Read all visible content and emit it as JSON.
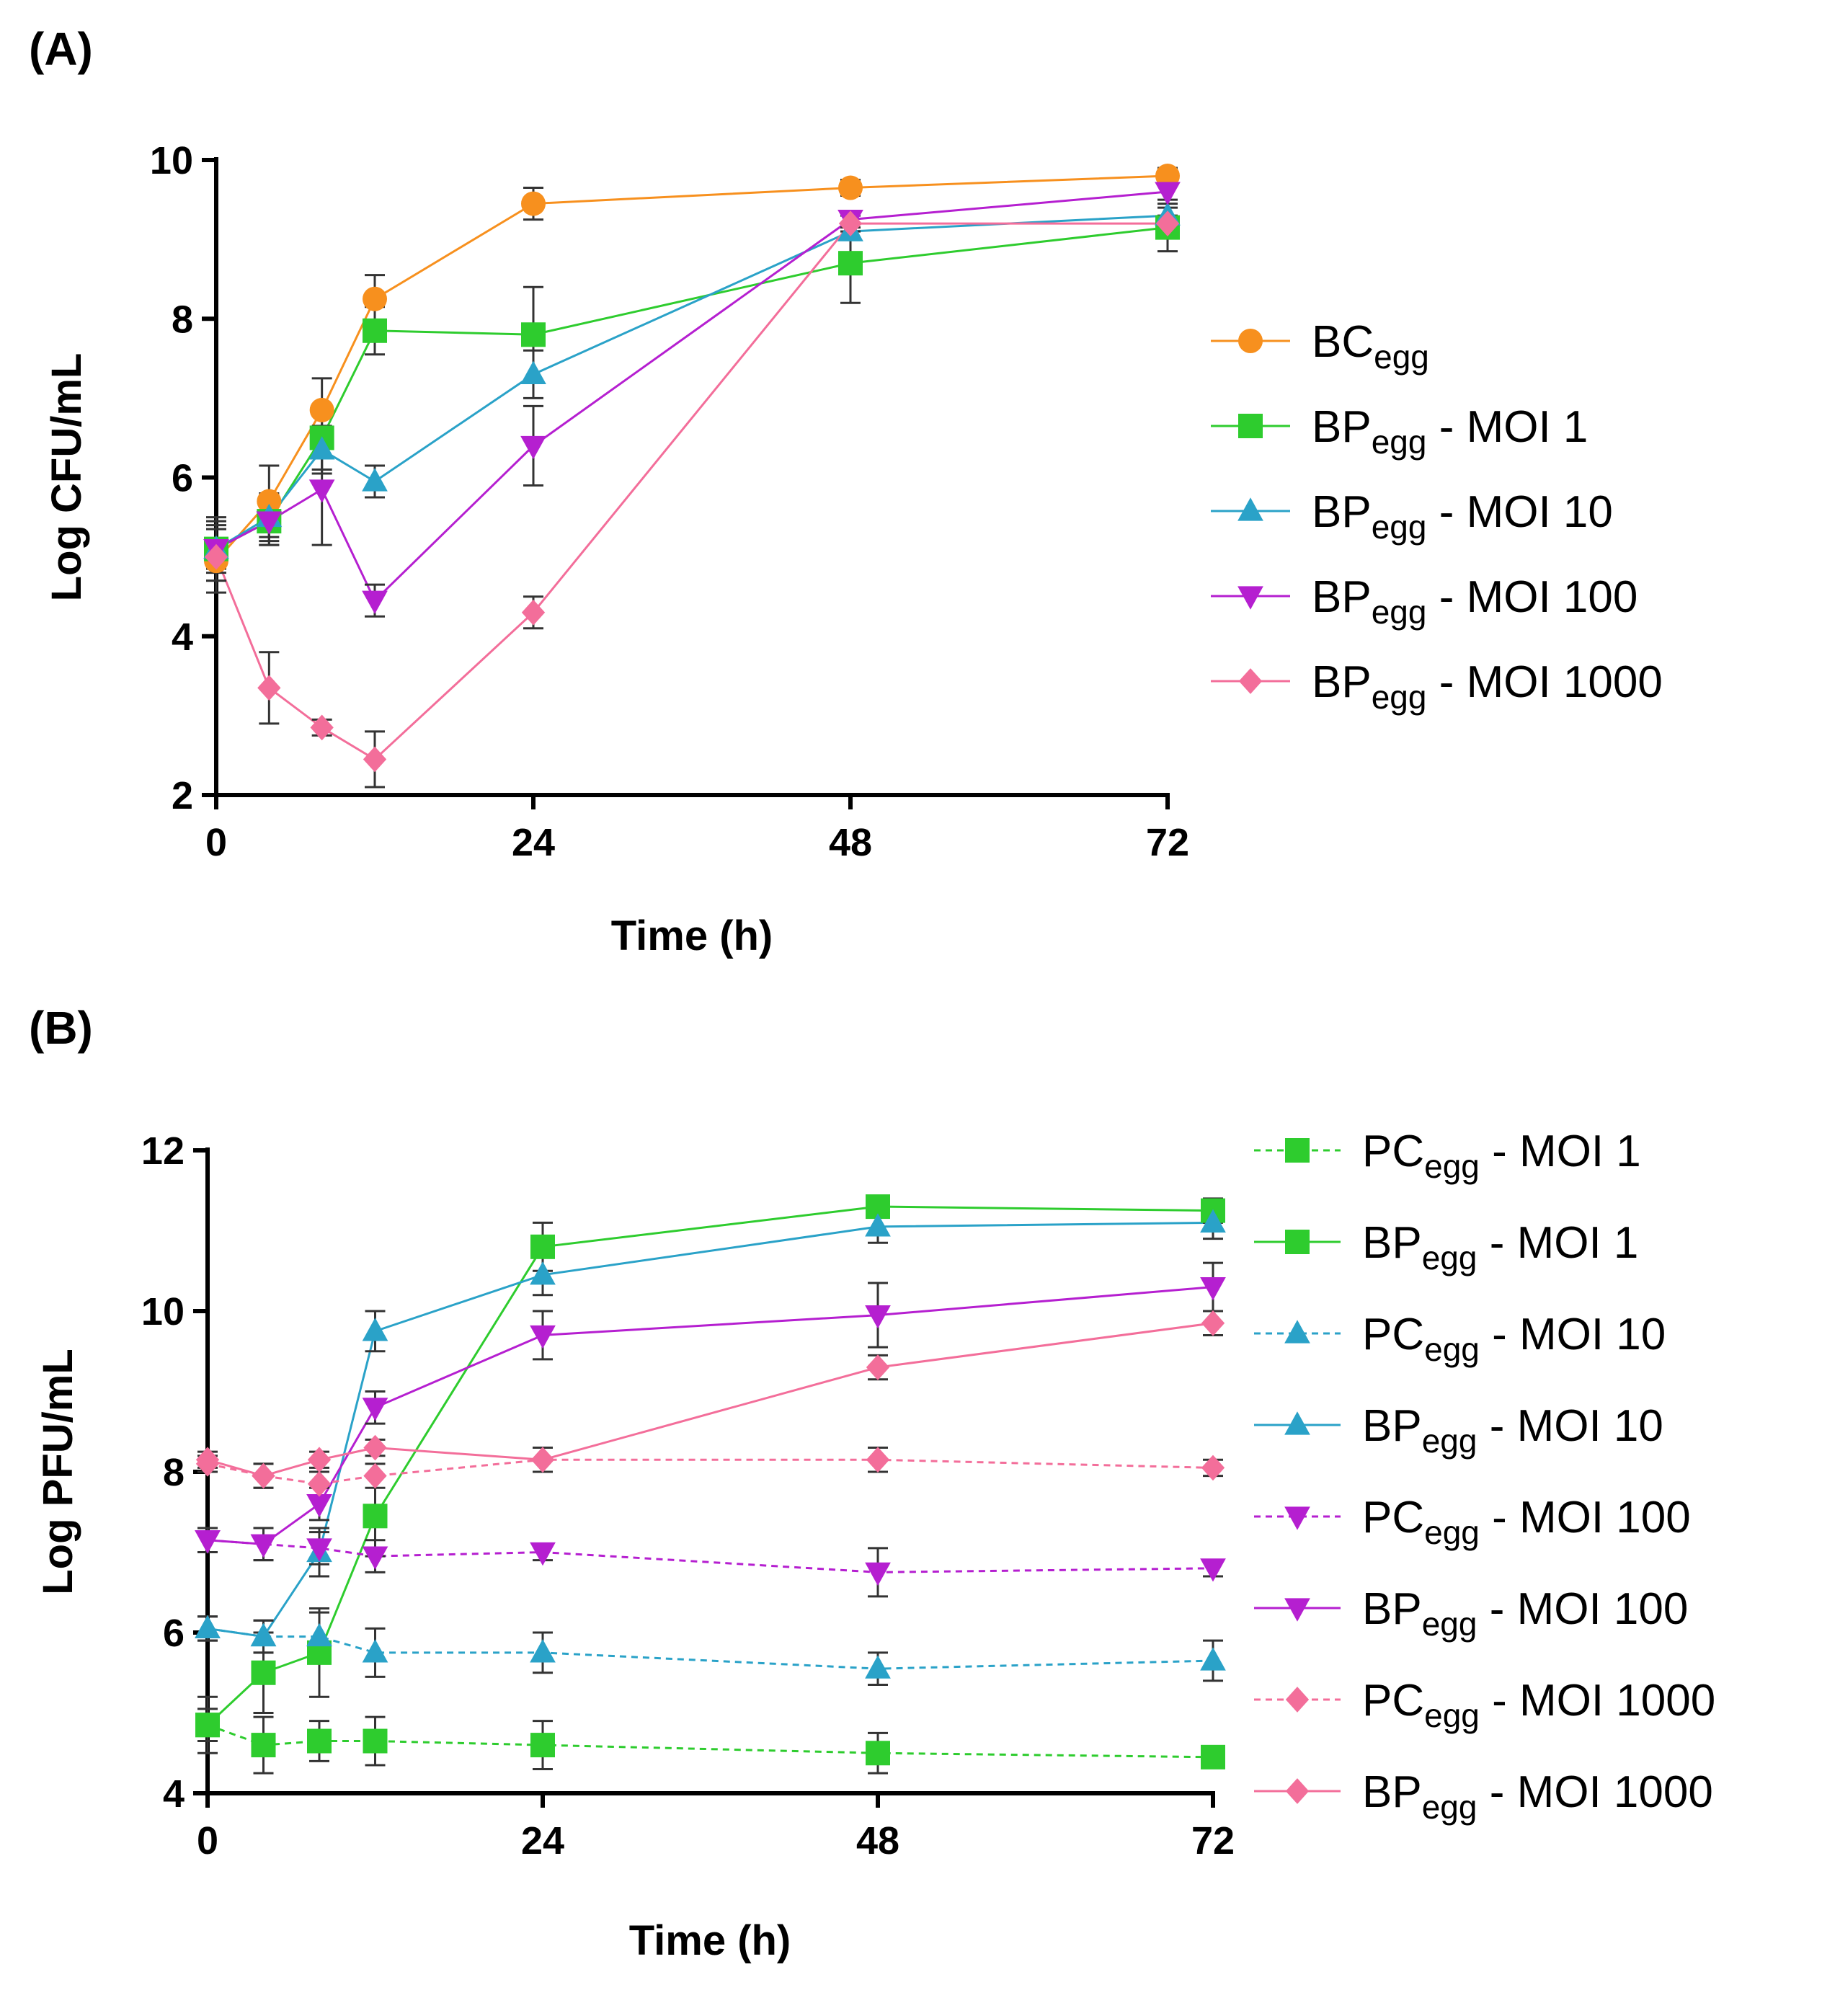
{
  "colors": {
    "orange": "#F7901E",
    "green": "#2ECC2E",
    "teal": "#2AA2C8",
    "purple": "#B51FD0",
    "pink": "#F36E9A",
    "axis": "#000000",
    "errorbar": "#333333"
  },
  "chart_data": [
    {
      "panel_label": "(A)",
      "type": "line",
      "title": "",
      "xlabel": "Time (h)",
      "ylabel": "Log CFU/mL",
      "xlim": [
        0,
        72
      ],
      "ylim": [
        2,
        10
      ],
      "xticks": [
        "0",
        "24",
        "48",
        "72"
      ],
      "yticks": [
        "2",
        "4",
        "6",
        "8",
        "10"
      ],
      "grid": false,
      "legend_position": "right",
      "x": [
        0,
        4,
        8,
        12,
        24,
        48,
        72
      ],
      "series": [
        {
          "base": "BC",
          "sub": "egg",
          "suffix": "",
          "color": "orange",
          "marker": "circle",
          "dash": false,
          "values": [
            4.95,
            5.7,
            6.85,
            8.25,
            9.45,
            9.65,
            9.8
          ],
          "errors": [
            0.25,
            0.45,
            0.4,
            0.3,
            0.2,
            0.1,
            0.1
          ]
        },
        {
          "base": "BP",
          "sub": "egg",
          "suffix": " - MOI 1",
          "color": "green",
          "marker": "square",
          "dash": false,
          "values": [
            5.1,
            5.45,
            6.5,
            7.85,
            7.8,
            8.7,
            9.15
          ],
          "errors": [
            0.3,
            0.3,
            0.4,
            0.3,
            0.6,
            0.5,
            0.3
          ]
        },
        {
          "base": "BP",
          "sub": "egg",
          "suffix": " - MOI 10",
          "color": "teal",
          "marker": "triangle-up",
          "dash": false,
          "values": [
            5.1,
            5.5,
            6.35,
            5.95,
            7.3,
            9.1,
            9.3
          ],
          "errors": [
            0.25,
            0.3,
            0.3,
            0.2,
            0.3,
            0.1,
            0.1
          ]
        },
        {
          "base": "BP",
          "sub": "egg",
          "suffix": " - MOI 100",
          "color": "purple",
          "marker": "triangle-down",
          "dash": false,
          "values": [
            5.1,
            5.45,
            5.85,
            4.45,
            6.4,
            9.25,
            9.6
          ],
          "errors": [
            0.4,
            0.3,
            0.7,
            0.2,
            0.5,
            0.1,
            0.1
          ]
        },
        {
          "base": "BP",
          "sub": "egg",
          "suffix": " - MOI 1000",
          "color": "pink",
          "marker": "diamond",
          "dash": false,
          "values": [
            5.0,
            3.35,
            2.85,
            2.45,
            4.3,
            9.2,
            9.2
          ],
          "errors": [
            0.45,
            0.45,
            0.1,
            0.35,
            0.2,
            0.1,
            0.1
          ]
        }
      ]
    },
    {
      "panel_label": "(B)",
      "type": "line",
      "title": "",
      "xlabel": "Time (h)",
      "ylabel": "Log PFU/mL",
      "xlim": [
        0,
        72
      ],
      "ylim": [
        4,
        12
      ],
      "xticks": [
        "0",
        "24",
        "48",
        "72"
      ],
      "yticks": [
        "4",
        "6",
        "8",
        "10",
        "12"
      ],
      "grid": false,
      "legend_position": "right",
      "x": [
        0,
        4,
        8,
        12,
        24,
        48,
        72
      ],
      "series": [
        {
          "base": "PC",
          "sub": "egg",
          "suffix": " - MOI 1",
          "color": "green",
          "marker": "square",
          "dash": true,
          "values": [
            4.85,
            4.6,
            4.65,
            4.65,
            4.6,
            4.5,
            4.45
          ],
          "errors": [
            0.2,
            0.35,
            0.25,
            0.3,
            0.3,
            0.25,
            0.1
          ]
        },
        {
          "base": "BP",
          "sub": "egg",
          "suffix": " - MOI 1",
          "color": "green",
          "marker": "square",
          "dash": false,
          "values": [
            4.85,
            5.5,
            5.75,
            7.45,
            10.8,
            11.3,
            11.25
          ],
          "errors": [
            0.35,
            0.5,
            0.55,
            0.5,
            0.3,
            0.1,
            0.15
          ]
        },
        {
          "base": "PC",
          "sub": "egg",
          "suffix": " - MOI 10",
          "color": "teal",
          "marker": "triangle-up",
          "dash": true,
          "values": [
            6.05,
            5.95,
            5.95,
            5.75,
            5.75,
            5.55,
            5.65
          ],
          "errors": [
            0.15,
            0.2,
            0.3,
            0.3,
            0.25,
            0.2,
            0.25
          ]
        },
        {
          "base": "BP",
          "sub": "egg",
          "suffix": " - MOI 10",
          "color": "teal",
          "marker": "triangle-up",
          "dash": false,
          "values": [
            6.05,
            5.95,
            7.0,
            9.75,
            10.45,
            11.05,
            11.1
          ],
          "errors": [
            0.15,
            0.2,
            0.3,
            0.25,
            0.25,
            0.2,
            0.2
          ]
        },
        {
          "base": "PC",
          "sub": "egg",
          "suffix": " - MOI 100",
          "color": "purple",
          "marker": "triangle-down",
          "dash": true,
          "values": [
            7.15,
            7.1,
            7.05,
            6.95,
            7.0,
            6.75,
            6.8
          ],
          "errors": [
            0.15,
            0.2,
            0.2,
            0.2,
            0.1,
            0.3,
            0.1
          ]
        },
        {
          "base": "BP",
          "sub": "egg",
          "suffix": " - MOI 100",
          "color": "purple",
          "marker": "triangle-down",
          "dash": false,
          "values": [
            7.15,
            7.1,
            7.6,
            8.8,
            9.7,
            9.95,
            10.3
          ],
          "errors": [
            0.15,
            0.2,
            0.2,
            0.2,
            0.3,
            0.4,
            0.3
          ]
        },
        {
          "base": "PC",
          "sub": "egg",
          "suffix": " - MOI 1000",
          "color": "pink",
          "marker": "diamond",
          "dash": true,
          "values": [
            8.1,
            7.95,
            7.85,
            7.95,
            8.15,
            8.15,
            8.05
          ],
          "errors": [
            0.1,
            0.15,
            0.15,
            0.15,
            0.15,
            0.15,
            0.1
          ]
        },
        {
          "base": "BP",
          "sub": "egg",
          "suffix": " - MOI 1000",
          "color": "pink",
          "marker": "diamond",
          "dash": false,
          "values": [
            8.15,
            7.95,
            8.15,
            8.3,
            8.15,
            9.3,
            9.85
          ],
          "errors": [
            0.1,
            0.15,
            0.1,
            0.1,
            0.15,
            0.15,
            0.15
          ]
        }
      ]
    }
  ]
}
